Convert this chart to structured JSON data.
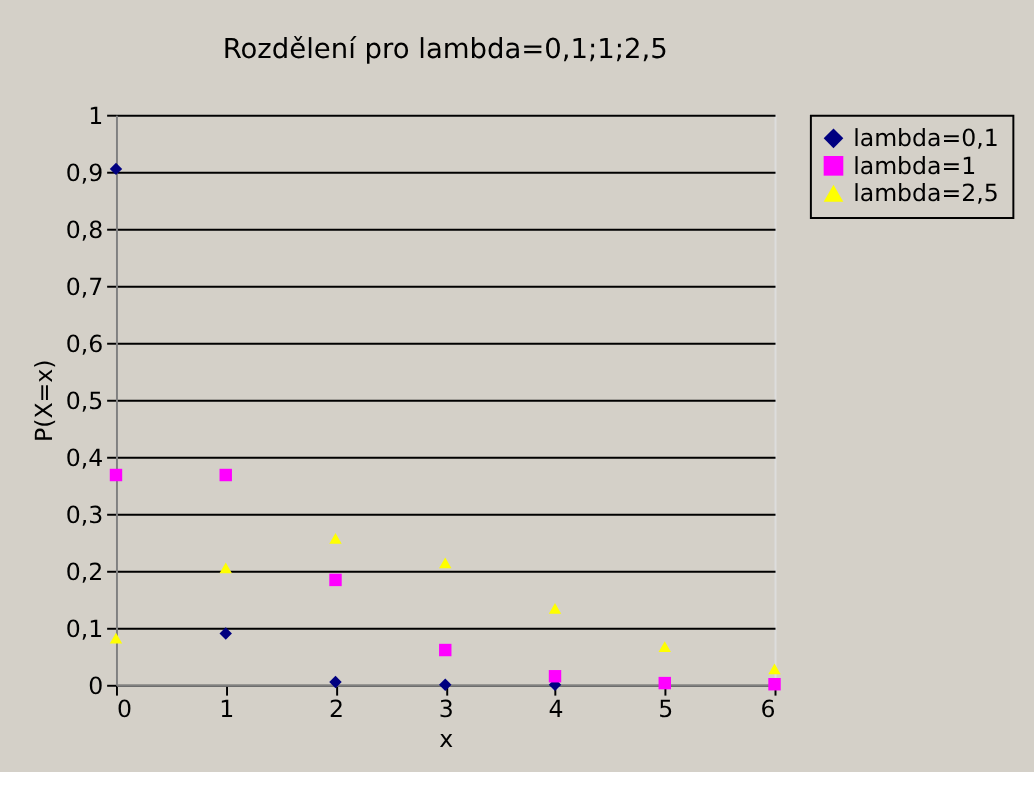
{
  "chart_data": {
    "type": "scatter",
    "title": "Rozdělení pro lambda=0,1;1;2,5",
    "xlabel": "x",
    "ylabel": "P(X=x)",
    "x": [
      0,
      1,
      2,
      3,
      4,
      5,
      6
    ],
    "series": [
      {
        "name": "lambda=0,1",
        "color": "#000080",
        "marker": "diamond",
        "values": [
          0.905,
          0.09,
          0.005,
          0.0,
          0.0,
          null,
          null
        ]
      },
      {
        "name": "lambda=1",
        "color": "#ff00ff",
        "marker": "square",
        "values": [
          0.368,
          0.368,
          0.184,
          0.061,
          0.015,
          0.003,
          0.001
        ]
      },
      {
        "name": "lambda=2,5",
        "color": "#ffff00",
        "marker": "triangle",
        "values": [
          0.082,
          0.205,
          0.257,
          0.214,
          0.134,
          0.067,
          0.028
        ]
      }
    ],
    "xlim": [
      0,
      6
    ],
    "xticks": [
      0,
      1,
      2,
      3,
      4,
      5,
      6
    ],
    "ylim": [
      0,
      1
    ],
    "yticks": [
      0,
      {
        "value": 0.1,
        "label": "0,1"
      },
      {
        "value": 0.2,
        "label": "0,2"
      },
      {
        "value": 0.3,
        "label": "0,3"
      },
      {
        "value": 0.4,
        "label": "0,4"
      },
      {
        "value": 0.5,
        "label": "0,5"
      },
      {
        "value": 0.6,
        "label": "0,6"
      },
      {
        "value": 0.7,
        "label": "0,7"
      },
      {
        "value": 0.8,
        "label": "0,8"
      },
      {
        "value": 0.9,
        "label": "0,9"
      },
      1
    ],
    "grid": "y",
    "legend": "right"
  }
}
